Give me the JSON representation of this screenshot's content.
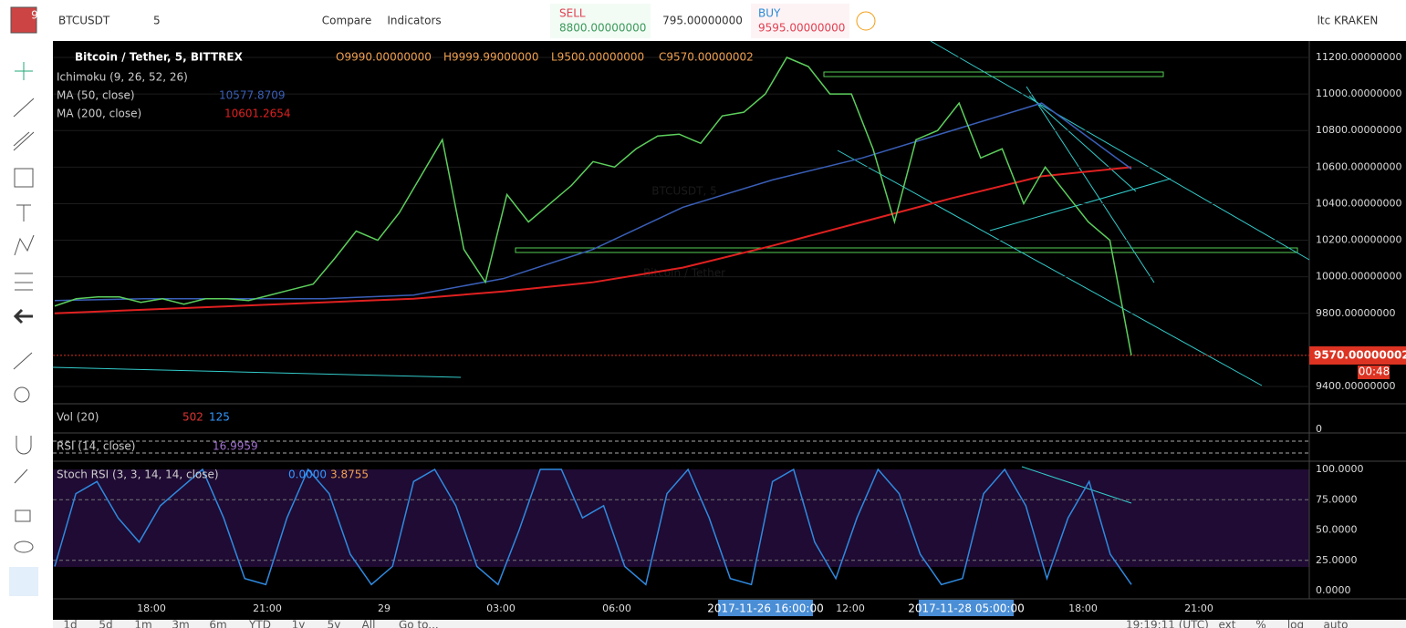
{
  "toolbar": {
    "badge": "9",
    "symbol": "BTCUSDT",
    "interval": "5",
    "compare": "Compare",
    "indicators": "Indicators",
    "sell_label": "SELL",
    "sell_price": "8800.00000000",
    "spread": "795.00000000",
    "buy_label": "BUY",
    "buy_price": "9595.00000000",
    "broker": "ltc KRAKEN"
  },
  "legend": {
    "title": "Bitcoin / Tether, 5, BITTREX",
    "ohlc": [
      "O9990.00000000",
      "H9999.99000000",
      "L9500.00000000",
      "C9570.00000002"
    ],
    "indicators": [
      {
        "name": "Ichimoku (9, 26, 52, 26)"
      },
      {
        "name": "MA (50, close)",
        "value": "10577.8709"
      },
      {
        "name": "MA (200, close)",
        "value": "10601.2654"
      }
    ]
  },
  "watermark": {
    "symbol": "BTCUSDT, 5",
    "name": "Bitcoin / Tether"
  },
  "price_axis": {
    "ticks": [
      {
        "value": 11200,
        "label": "11200.00000000"
      },
      {
        "value": 11000,
        "label": "11000.00000000"
      },
      {
        "value": 10800,
        "label": "10800.00000000"
      },
      {
        "value": 10600,
        "label": "10600.00000000"
      },
      {
        "value": 10400,
        "label": "10400.00000000"
      },
      {
        "value": 10200,
        "label": "10200.00000000"
      },
      {
        "value": 10000,
        "label": "10000.00000000"
      },
      {
        "value": 9800,
        "label": "9800.00000000"
      },
      {
        "value": 9400,
        "label": "9400.00000000"
      }
    ],
    "last": {
      "value": 9570.00000002,
      "label": "9570.00000002"
    },
    "countdown": "00:48"
  },
  "price": {
    "closes": [
      9840,
      9880,
      9890,
      9890,
      9860,
      9880,
      9850,
      9880,
      9880,
      9870,
      9900,
      9930,
      9960,
      10100,
      10250,
      10200,
      10350,
      10550,
      10750,
      10150,
      9970,
      10450,
      10300,
      10400,
      10500,
      10630,
      10600,
      10700,
      10770,
      10780,
      10730,
      10880,
      10900,
      11000,
      11200,
      11150,
      11000,
      11000,
      10700,
      10300,
      10750,
      10800,
      10950,
      10650,
      10700,
      10400,
      10600,
      10450,
      10300,
      10200,
      9570
    ],
    "ma50": [
      9870,
      9880,
      9880,
      9880,
      9900,
      9990,
      10150,
      10380,
      10530,
      10650,
      10800,
      10950,
      10590
    ],
    "ma200": [
      9800,
      9820,
      9840,
      9860,
      9880,
      9920,
      9970,
      10050,
      10170,
      10300,
      10430,
      10550,
      10600
    ]
  },
  "panes": {
    "vol": {
      "title": "Vol (20)",
      "values": [
        "502",
        "125"
      ],
      "axis": "0"
    },
    "rsi": {
      "title": "RSI (14, close)",
      "value": "16.9959"
    },
    "stoch": {
      "title": "Stoch RSI (3, 3, 14, 14, close)",
      "k": "0.0000",
      "d": "3.8755",
      "ticks": [
        {
          "value": 100,
          "label": "100.0000"
        },
        {
          "value": 75,
          "label": "75.0000"
        },
        {
          "value": 50,
          "label": "50.0000"
        },
        {
          "value": 25,
          "label": "25.0000"
        },
        {
          "value": 0,
          "label": "0.0000"
        }
      ],
      "values": [
        20,
        80,
        90,
        60,
        40,
        70,
        85,
        100,
        60,
        10,
        5,
        60,
        100,
        80,
        30,
        5,
        20,
        90,
        100,
        70,
        20,
        5,
        50,
        100,
        100,
        60,
        70,
        20,
        5,
        80,
        100,
        60,
        10,
        5,
        90,
        100,
        40,
        10,
        60,
        100,
        80,
        30,
        5,
        10,
        80,
        100,
        70,
        10,
        60,
        90,
        30,
        5
      ]
    }
  },
  "time_axis": [
    "18:00",
    "21:00",
    "29",
    "03:00",
    "06:00",
    "12:00",
    "18:00",
    "21:00"
  ],
  "time_highlights": [
    "2017-11-26 16:00:00",
    "2017-11-28 05:00:00"
  ],
  "bottom": {
    "ranges": [
      "1d",
      "5d",
      "1m",
      "3m",
      "6m",
      "YTD",
      "1y",
      "5y",
      "All"
    ],
    "goto": "Go to...",
    "clock": "19:19:11 (UTC)",
    "options": [
      "ext",
      "%",
      "log",
      "auto"
    ]
  }
}
